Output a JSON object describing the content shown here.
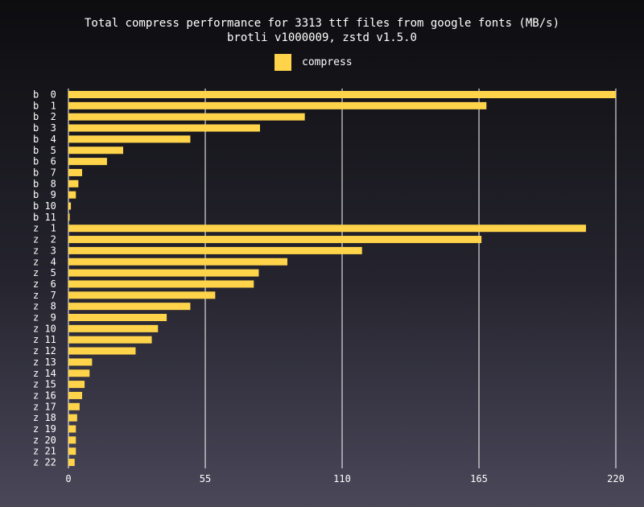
{
  "chart_data": {
    "type": "bar",
    "orientation": "horizontal",
    "title": "Total compress performance for 3313 ttf files from google fonts (MB/s)",
    "subtitle": "brotli v1000009, zstd v1.5.0",
    "legend": {
      "placement": "top-center",
      "entries": [
        "compress"
      ]
    },
    "categories": [
      "b  0",
      "b  1",
      "b  2",
      "b  3",
      "b  4",
      "b  5",
      "b  6",
      "b  7",
      "b  8",
      "b  9",
      "b 10",
      "b 11",
      "z  1",
      "z  2",
      "z  3",
      "z  4",
      "z  5",
      "z  6",
      "z  7",
      "z  8",
      "z  9",
      "z 10",
      "z 11",
      "z 12",
      "z 13",
      "z 14",
      "z 15",
      "z 16",
      "z 17",
      "z 18",
      "z 19",
      "z 20",
      "z 21",
      "z 22"
    ],
    "series": [
      {
        "name": "compress",
        "color": "#ffd44a",
        "values": [
          220,
          168,
          95,
          77,
          49,
          22,
          15.5,
          5.5,
          4,
          3,
          1,
          0.5,
          208,
          166,
          118,
          88,
          76.5,
          74.5,
          59,
          49,
          39.5,
          36,
          33.5,
          27,
          9.5,
          8.5,
          6.5,
          5.5,
          4.5,
          3.5,
          3,
          3,
          3,
          2.5
        ]
      }
    ],
    "xlim": [
      0,
      220
    ],
    "xticks": [
      0,
      55,
      110,
      165,
      220
    ],
    "grid": "vertical",
    "xlabel": "",
    "ylabel": ""
  },
  "colors": {
    "bar": "#ffd44a",
    "grid": "#ffffff",
    "text": "#ffffff"
  }
}
